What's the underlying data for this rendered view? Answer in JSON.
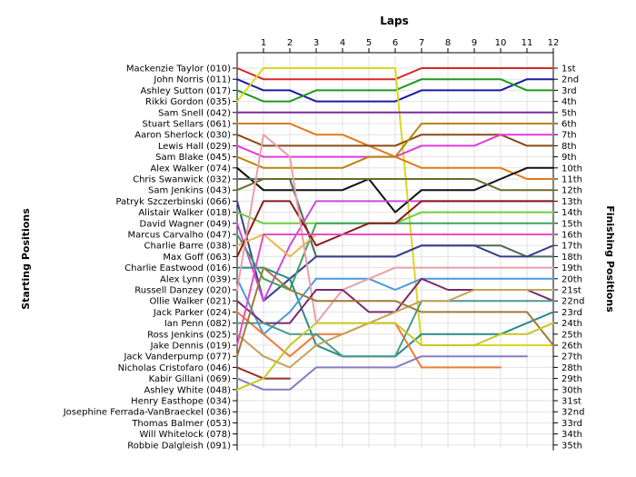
{
  "chart_data": {
    "type": "line",
    "title": "Laps",
    "ylabel_left": "Starting Positions",
    "ylabel_right": "Finishing Positions",
    "laps": [
      0,
      1,
      2,
      3,
      4,
      5,
      6,
      7,
      8,
      9,
      10,
      11,
      12
    ],
    "x_tick_labels": [
      "1",
      "2",
      "3",
      "4",
      "5",
      "6",
      "7",
      "8",
      "9",
      "10",
      "11",
      "12"
    ],
    "drivers": [
      "Mackenzie Taylor (010)",
      "John Norris (011)",
      "Ashley Sutton (017)",
      "Rikki Gordon (035)",
      "Sam Snell (042)",
      "Stuart Sellars (061)",
      "Aaron Sherlock (030)",
      "Lewis Hall (029)",
      "Sam Blake (045)",
      "Alex Walker (074)",
      "Chris Swanwick (032)",
      "Sam Jenkins (043)",
      "Patryk Szczerbinski (066)",
      "Alistair Walker (018)",
      "David Wagner (049)",
      "Marcus Carvalho (047)",
      "Charlie Barre (038)",
      "Max Goff (063)",
      "Charlie Eastwood (016)",
      "Alex Lynn (039)",
      "Russell Danzey (020)",
      "Ollie Walker (021)",
      "Jack Parker (024)",
      "Ian Penn (082)",
      "Ross Jenkins (025)",
      "Jake Dennis (019)",
      "Jack Vanderpump (077)",
      "Nicholas Cristofaro (046)",
      "Kabir Gillani (069)",
      "Ashley White (048)",
      "Henry Easthope (034)",
      "Josephine Ferrada-VanBraeckel (036)",
      "Thomas Balmer (053)",
      "Will Whitelock (078)",
      "Robbie Dalgleish (091)"
    ],
    "finishing_positions": [
      "1st",
      "2nd",
      "3rd",
      "4th",
      "5th",
      "6th",
      "7th",
      "8th",
      "9th",
      "10th",
      "11th",
      "12th",
      "13th",
      "14th",
      "15th",
      "16th",
      "17th",
      "18th",
      "19th",
      "20th",
      "21st",
      "22nd",
      "23rd",
      "24th",
      "25th",
      "26th",
      "27th",
      "28th",
      "29th",
      "30th",
      "31st",
      "32nd",
      "33rd",
      "34th",
      "35th"
    ],
    "series": [
      {
        "color": "#d62828",
        "positions": [
          1,
          2,
          2,
          2,
          2,
          2,
          2,
          1,
          1,
          1,
          1,
          1,
          1
        ]
      },
      {
        "color": "#1a1aa8",
        "positions": [
          2,
          3,
          3,
          4,
          4,
          4,
          4,
          3,
          3,
          3,
          3,
          2,
          2
        ]
      },
      {
        "color": "#1e9a1e",
        "positions": [
          3,
          4,
          4,
          3,
          3,
          3,
          3,
          2,
          2,
          2,
          2,
          3,
          3
        ]
      },
      {
        "color": "#d8d820",
        "positions": [
          4,
          1,
          1,
          1,
          1,
          1,
          1,
          26,
          26,
          26,
          26,
          26,
          26
        ]
      },
      {
        "color": "#7b2c9e",
        "positions": [
          5,
          5,
          5,
          5,
          5,
          5,
          5,
          5,
          5,
          5,
          5,
          5,
          5
        ]
      },
      {
        "color": "#e07a1a",
        "positions": [
          6,
          6,
          6,
          7,
          7,
          8,
          9,
          10,
          10,
          10,
          10,
          11,
          11
        ]
      },
      {
        "color": "#8b4a16",
        "positions": [
          7,
          8,
          8,
          8,
          8,
          8,
          8,
          7,
          7,
          7,
          7,
          8,
          8
        ]
      },
      {
        "color": "#e23adf",
        "positions": [
          8,
          9,
          9,
          9,
          9,
          9,
          9,
          8,
          8,
          8,
          7,
          7,
          7
        ]
      },
      {
        "color": "#b8860b",
        "positions": [
          9,
          10,
          10,
          10,
          10,
          9,
          9,
          6,
          6,
          6,
          6,
          6,
          6
        ]
      },
      {
        "color": "#111111",
        "positions": [
          10,
          12,
          12,
          12,
          12,
          11,
          14,
          12,
          12,
          12,
          11,
          10,
          10
        ]
      },
      {
        "color": "#4f6b55",
        "positions": [
          11,
          11,
          11,
          18,
          18,
          18,
          18,
          17,
          17,
          17,
          17,
          18,
          18
        ]
      },
      {
        "color": "#6b6b2a",
        "positions": [
          12,
          11,
          11,
          11,
          11,
          11,
          11,
          11,
          11,
          11,
          12,
          12,
          12
        ]
      },
      {
        "color": "#3a3f8f",
        "positions": [
          13,
          22,
          20,
          18,
          18,
          18,
          18,
          17,
          17,
          17,
          18,
          18,
          17
        ]
      },
      {
        "color": "#6ad13a",
        "positions": [
          14,
          15,
          15,
          15,
          15,
          15,
          15,
          14,
          14,
          14,
          14,
          14,
          14
        ]
      },
      {
        "color": "#c94bd6",
        "positions": [
          15,
          22,
          17,
          13,
          13,
          13,
          13,
          13,
          13,
          13,
          13,
          13,
          13
        ]
      },
      {
        "color": "#3da55a",
        "positions": [
          16,
          20,
          21,
          15,
          15,
          15,
          15,
          15,
          15,
          15,
          15,
          15,
          15
        ]
      },
      {
        "color": "#e8b84a",
        "positions": [
          17,
          16,
          18,
          16,
          16,
          16,
          16,
          16,
          16,
          16,
          16,
          16,
          16
        ]
      },
      {
        "color": "#8b1a1a",
        "positions": [
          18,
          13,
          13,
          17,
          16,
          15,
          15,
          13,
          13,
          13,
          13,
          13,
          13
        ]
      },
      {
        "color": "#2a8b8b",
        "positions": [
          19,
          19,
          20,
          26,
          27,
          27,
          27,
          25,
          25,
          25,
          25,
          24,
          23
        ]
      },
      {
        "color": "#4a9adb",
        "positions": [
          20,
          25,
          23,
          20,
          20,
          20,
          21,
          20,
          20,
          20,
          20,
          20,
          20
        ]
      },
      {
        "color": "#e8a0a8",
        "positions": [
          21,
          7,
          9,
          24,
          21,
          20,
          19,
          19,
          19,
          19,
          19,
          19,
          19
        ]
      },
      {
        "color": "#7a2a6a",
        "positions": [
          22,
          24,
          24,
          21,
          21,
          23,
          23,
          20,
          21,
          21,
          21,
          21,
          22
        ]
      },
      {
        "color": "#f07a3a",
        "positions": [
          23,
          25,
          27,
          25,
          25,
          24,
          24,
          28,
          28,
          28,
          28
        ]
      },
      {
        "color": "#4b9a8a",
        "positions": [
          24,
          24,
          25,
          25,
          27,
          27,
          27,
          22,
          22,
          22,
          22,
          22,
          22
        ]
      },
      {
        "color": "#c4a35a",
        "positions": [
          25,
          27,
          28,
          26,
          25,
          24,
          23,
          22,
          22,
          21,
          21,
          21,
          21
        ]
      },
      {
        "color": "#e84dc2",
        "positions": [
          26,
          16,
          16,
          16,
          16,
          16,
          16,
          16,
          16,
          16,
          16,
          16,
          16
        ]
      },
      {
        "color": "#a07a3a",
        "positions": [
          27,
          19,
          21,
          22,
          22,
          22,
          22,
          23,
          23,
          23,
          23,
          23,
          26
        ]
      },
      {
        "color": "#9b2f2f",
        "positions": [
          28,
          29,
          29
        ]
      },
      {
        "color": "#8a7ac8",
        "positions": [
          29,
          30,
          30,
          28,
          28,
          28,
          28,
          27,
          27,
          27,
          27,
          27
        ]
      },
      {
        "color": "#c8c820",
        "positions": [
          30,
          29,
          26,
          24,
          24,
          24,
          24,
          26,
          26,
          26,
          25,
          25,
          24
        ]
      }
    ]
  }
}
